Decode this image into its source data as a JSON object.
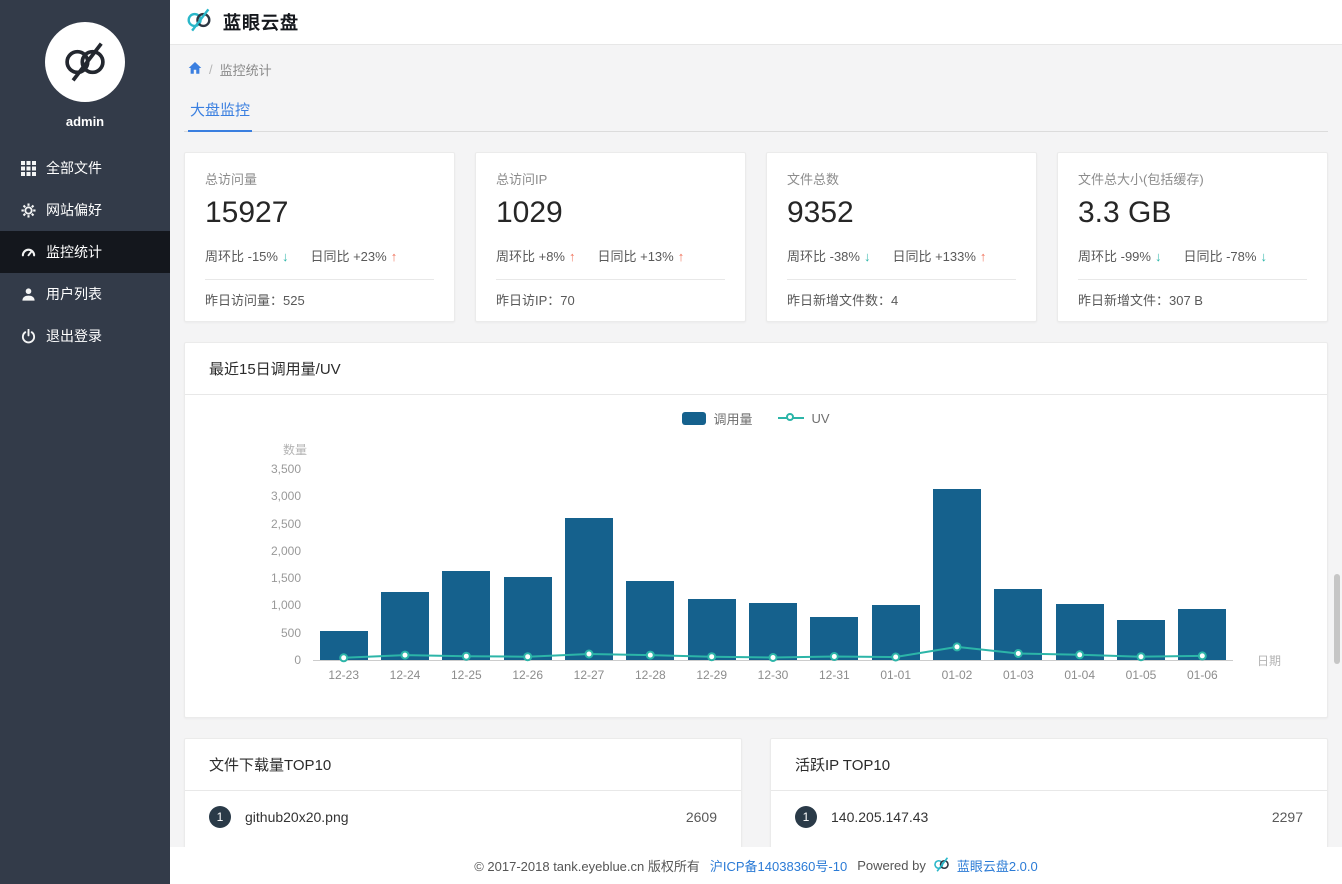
{
  "colors": {
    "accent_blue": "#3a7fe0",
    "sidebar_bg": "#333b49",
    "sidebar_active_bg": "#14171d",
    "bar_blue": "#15618d",
    "uv_teal": "#2cb5a8",
    "trend_up_orange": "#f0735c",
    "trend_down_teal": "#2cb5a8",
    "link_blue": "#2b7bd6",
    "rank_badge_dark": "#2a3a48"
  },
  "header": {
    "title": "蓝眼云盘"
  },
  "sidebar": {
    "username": "admin",
    "items": [
      {
        "label": "全部文件"
      },
      {
        "label": "网站偏好"
      },
      {
        "label": "监控统计"
      },
      {
        "label": "用户列表"
      },
      {
        "label": "退出登录"
      }
    ]
  },
  "breadcrumb": {
    "separator": "/",
    "current": "监控统计"
  },
  "tabs": {
    "active": "大盘监控"
  },
  "stat_cards": [
    {
      "title": "总访问量",
      "value": "15927",
      "week_trend": {
        "text": "周环比 -15%",
        "char": "↓",
        "dir": "down"
      },
      "day_trend": {
        "text": "日同比 +23%",
        "char": "↑",
        "dir": "up"
      },
      "footer": "昨日访问量：525"
    },
    {
      "title": "总访问IP",
      "value": "1029",
      "week_trend": {
        "text": "周环比 +8%",
        "char": "↑",
        "dir": "up"
      },
      "day_trend": {
        "text": "日同比 +13%",
        "char": "↑",
        "dir": "up"
      },
      "footer": "昨日访IP：70"
    },
    {
      "title": "文件总数",
      "value": "9352",
      "week_trend": {
        "text": "周环比 -38%",
        "char": "↓",
        "dir": "down"
      },
      "day_trend": {
        "text": "日同比 +133%",
        "char": "↑",
        "dir": "up"
      },
      "footer": "昨日新增文件数：4"
    },
    {
      "title": "文件总大小(包括缓存)",
      "value": "3.3 GB",
      "week_trend": {
        "text": "周环比 -99%",
        "char": "↓",
        "dir": "down"
      },
      "day_trend": {
        "text": "日同比 -78%",
        "char": "↓",
        "dir": "down"
      },
      "footer": "昨日新增文件：307 B"
    }
  ],
  "chart_card": {
    "title": "最近15日调用量/UV"
  },
  "chart_data": {
    "type": "bar",
    "title": "最近15日调用量/UV",
    "xlabel": "日期",
    "ylabel": "数量",
    "ylim": [
      0,
      3500
    ],
    "grid": false,
    "legend_position": "top-center",
    "categories": [
      "12-23",
      "12-24",
      "12-25",
      "12-26",
      "12-27",
      "12-28",
      "12-29",
      "12-30",
      "12-31",
      "01-01",
      "01-02",
      "01-03",
      "01-04",
      "01-05",
      "01-06"
    ],
    "series": [
      {
        "name": "调用量",
        "type": "bar",
        "color": "#15618d",
        "values": [
          540,
          1250,
          1630,
          1520,
          2600,
          1450,
          1110,
          1050,
          790,
          1010,
          3130,
          1300,
          1030,
          740,
          930
        ]
      },
      {
        "name": "UV",
        "type": "line",
        "color": "#2cb5a8",
        "values": [
          40,
          90,
          70,
          60,
          110,
          90,
          60,
          45,
          65,
          55,
          240,
          120,
          95,
          60,
          75
        ]
      }
    ],
    "yticks": [
      {
        "v": 0,
        "label": "0"
      },
      {
        "v": 500,
        "label": "500"
      },
      {
        "v": 1000,
        "label": "1,000"
      },
      {
        "v": 1500,
        "label": "1,500"
      },
      {
        "v": 2000,
        "label": "2,000"
      },
      {
        "v": 2500,
        "label": "2,500"
      },
      {
        "v": 3000,
        "label": "3,000"
      },
      {
        "v": 3500,
        "label": "3,500"
      }
    ]
  },
  "top_lists": [
    {
      "title": "文件下载量TOP10",
      "rows": [
        {
          "rank": "1",
          "name": "github20x20.png",
          "value": "2609"
        }
      ]
    },
    {
      "title": "活跃IP TOP10",
      "rows": [
        {
          "rank": "1",
          "name": "140.205.147.43",
          "value": "2297"
        }
      ]
    }
  ],
  "footer": {
    "copyright": "© 2017-2018 tank.eyeblue.cn 版权所有",
    "icp_link": "沪ICP备14038360号-10",
    "powered_by": "Powered by",
    "brand_link": "蓝眼云盘2.0.0"
  }
}
